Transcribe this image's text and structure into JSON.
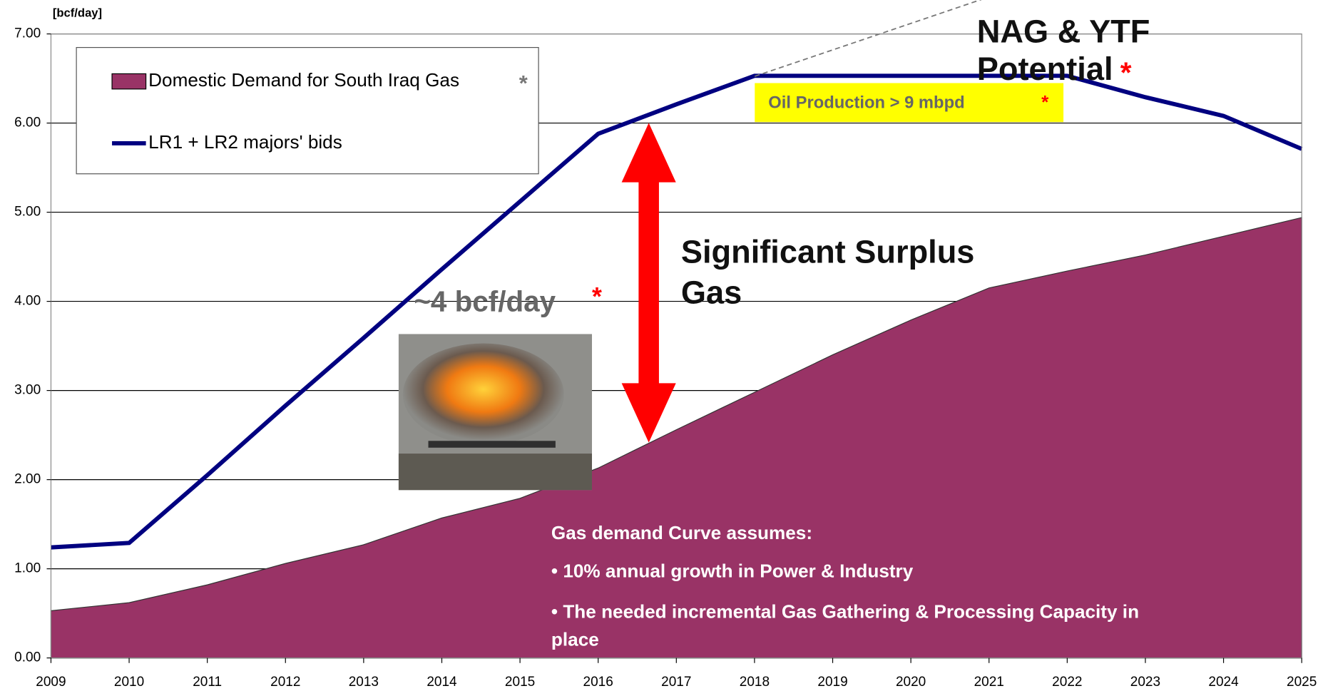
{
  "chart_data": {
    "type": "area-line",
    "y_axis_label": "[bcf/day]",
    "categories": [
      "2009",
      "2010",
      "2011",
      "2012",
      "2013",
      "2014",
      "2015",
      "2016",
      "2017",
      "2018",
      "2019",
      "2020",
      "2021",
      "2022",
      "2023",
      "2024",
      "2025"
    ],
    "series": [
      {
        "name": "Domestic Demand for South Iraq Gas",
        "legend_star": "*",
        "color": "#993366",
        "kind": "area",
        "values": [
          0.53,
          0.62,
          0.82,
          1.06,
          1.27,
          1.57,
          1.79,
          2.13,
          2.56,
          2.98,
          3.4,
          3.79,
          4.15,
          4.34,
          4.52,
          4.73,
          4.94
        ]
      },
      {
        "name": "LR1 + LR2 majors' bids",
        "color": "#000080",
        "kind": "line",
        "values": [
          1.24,
          1.29,
          2.05,
          2.83,
          3.59,
          4.36,
          5.12,
          5.88,
          6.21,
          6.53,
          6.53,
          6.53,
          6.53,
          6.53,
          6.29,
          6.08,
          5.71
        ]
      }
    ],
    "ylim": [
      0,
      7
    ],
    "yticks": [
      {
        "value": 0,
        "label": "0.00"
      },
      {
        "value": 1,
        "label": "1.00"
      },
      {
        "value": 2,
        "label": "2.00"
      },
      {
        "value": 3,
        "label": "3.00"
      },
      {
        "value": 4,
        "label": "4.00"
      },
      {
        "value": 5,
        "label": "5.00"
      },
      {
        "value": 6,
        "label": "6.00"
      },
      {
        "value": 7,
        "label": "7.00"
      }
    ],
    "grid": true,
    "annotations": {
      "nag_ytf": {
        "lines": [
          "NAG & YTF",
          "Potential"
        ],
        "star": "*"
      },
      "oil_production": {
        "text": "Oil Production > 9 mbpd",
        "star": "*"
      },
      "surplus": {
        "lines": [
          "Significant Surplus",
          "Gas"
        ]
      },
      "flaring": {
        "text": "~4 bcf/day",
        "star": "*"
      },
      "assumptions": {
        "lines": [
          "Gas demand Curve assumes:",
          "• 10% annual growth in Power & Industry",
          "• The needed incremental Gas Gathering & Processing Capacity in",
          "place"
        ]
      }
    }
  }
}
